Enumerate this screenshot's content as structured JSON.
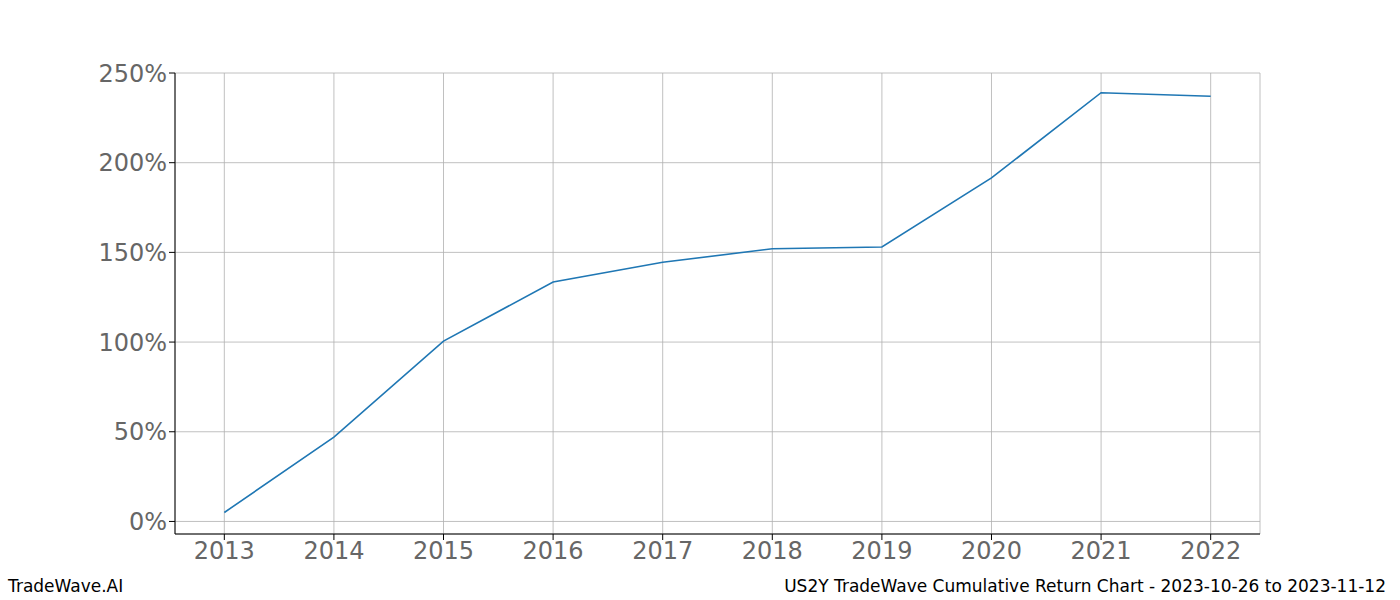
{
  "chart_data": {
    "type": "line",
    "title": "US2Y TradeWave Cumulative Return Chart - 2023-10-26 to 2023-11-12",
    "credit": "TradeWave.AI",
    "x": [
      2013,
      2014,
      2015,
      2016,
      2017,
      2018,
      2019,
      2020,
      2021,
      2022
    ],
    "values": [
      5,
      47,
      100.5,
      133.5,
      144.5,
      152,
      153,
      191.5,
      239,
      237
    ],
    "color": "#1f77b4",
    "xlim": [
      2012.55,
      2022.45
    ],
    "xticks": [
      2013,
      2014,
      2015,
      2016,
      2017,
      2018,
      2019,
      2020,
      2021,
      2022
    ],
    "ylim": [
      -7,
      250
    ],
    "yticks": [
      {
        "value": 0,
        "label": "0%"
      },
      {
        "value": 50,
        "label": "50%"
      },
      {
        "value": 100,
        "label": "100%"
      },
      {
        "value": 150,
        "label": "150%"
      },
      {
        "value": 200,
        "label": "200%"
      },
      {
        "value": 250,
        "label": "250%"
      }
    ],
    "grid": true
  }
}
